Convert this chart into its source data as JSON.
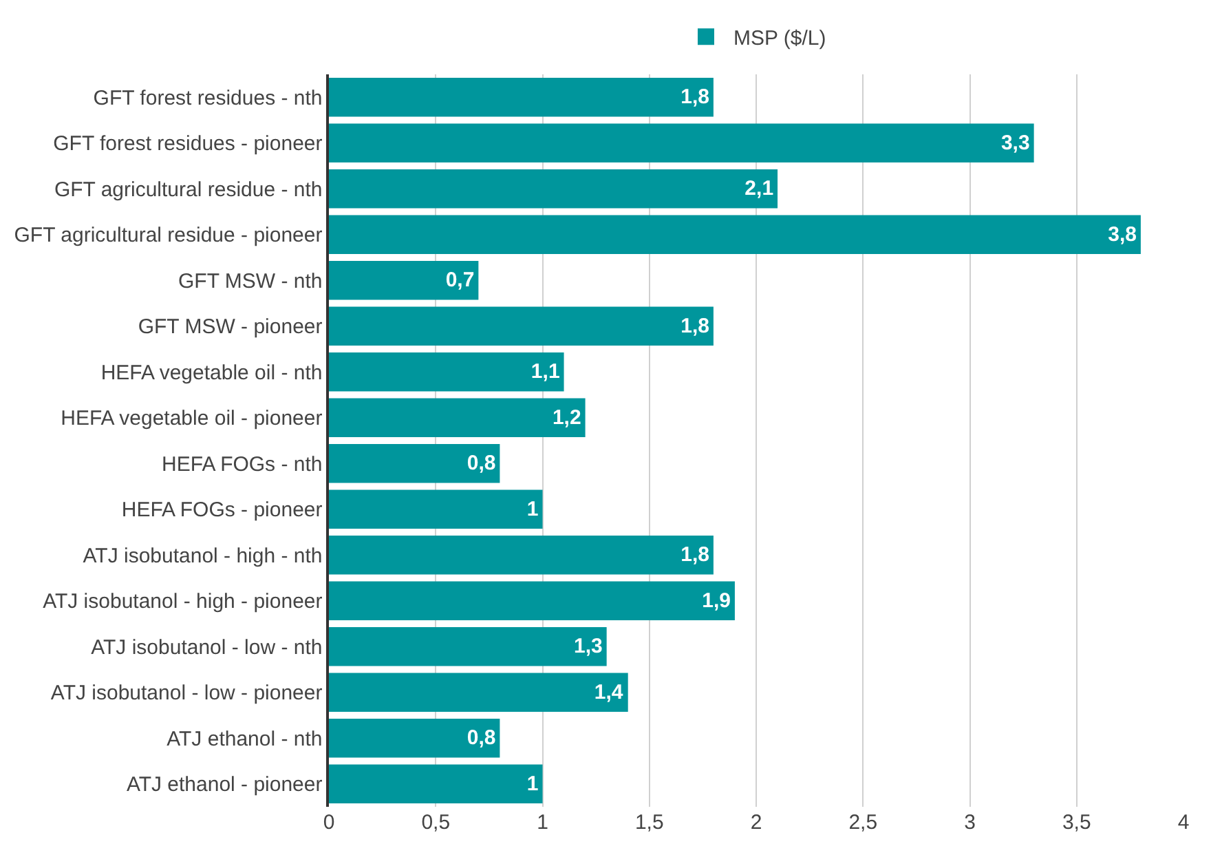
{
  "chart_data": {
    "type": "bar",
    "orientation": "horizontal",
    "categories": [
      "GFT forest residues - nth",
      "GFT forest residues - pioneer",
      "GFT agricultural residue - nth",
      "GFT agricultural residue - pioneer",
      "GFT MSW - nth",
      "GFT MSW - pioneer",
      "HEFA vegetable oil - nth",
      "HEFA vegetable oil - pioneer",
      "HEFA FOGs - nth",
      "HEFA FOGs - pioneer",
      "ATJ isobutanol - high - nth",
      "ATJ isobutanol - high - pioneer",
      "ATJ isobutanol - low - nth",
      "ATJ isobutanol - low - pioneer",
      "ATJ ethanol - nth",
      "ATJ ethanol - pioneer"
    ],
    "series": [
      {
        "name": "MSP ($/L)",
        "color": "#00969c",
        "values": [
          1.8,
          3.3,
          2.1,
          3.8,
          0.7,
          1.8,
          1.1,
          1.2,
          0.8,
          1,
          1.8,
          1.9,
          1.3,
          1.4,
          0.8,
          1
        ],
        "value_labels": [
          "1,8",
          "3,3",
          "2,1",
          "3,8",
          "0,7",
          "1,8",
          "1,1",
          "1,2",
          "0,8",
          "1",
          "1,8",
          "1,9",
          "1,3",
          "1,4",
          "0,8",
          "1"
        ]
      }
    ],
    "xlim": [
      0,
      4
    ],
    "xticks": [
      0,
      {
        "value": 0.5,
        "label": "0,5"
      },
      1,
      {
        "value": 1.5,
        "label": "1,5"
      },
      2,
      {
        "value": 2.5,
        "label": "2,5"
      },
      3,
      {
        "value": 3.5,
        "label": "3,5"
      },
      4
    ],
    "grid": "x",
    "legend": "top"
  }
}
